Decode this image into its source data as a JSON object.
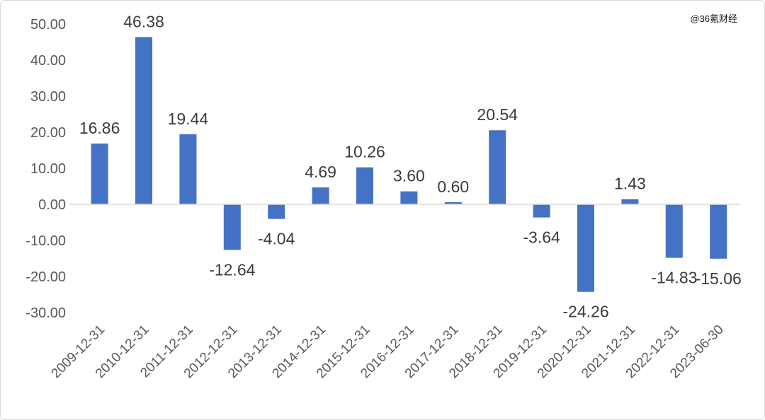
{
  "watermark": "@36氪财经",
  "chart_data": {
    "type": "bar",
    "categories": [
      "2009-12-31",
      "2010-12-31",
      "2011-12-31",
      "2012-12-31",
      "2013-12-31",
      "2014-12-31",
      "2015-12-31",
      "2016-12-31",
      "2017-12-31",
      "2018-12-31",
      "2019-12-31",
      "2020-12-31",
      "2021-12-31",
      "2022-12-31",
      "2023-06-30"
    ],
    "values": [
      16.86,
      46.38,
      19.44,
      -12.64,
      -4.04,
      4.69,
      10.26,
      3.6,
      0.6,
      20.54,
      -3.64,
      -24.26,
      1.43,
      -14.83,
      -15.06
    ],
    "data_labels": [
      "16.86",
      "46.38",
      "19.44",
      "-12.64",
      "-4.04",
      "4.69",
      "10.26",
      "3.60",
      "0.60",
      "20.54",
      "-3.64",
      "-24.26",
      "1.43",
      "-14.83",
      "-15.06"
    ],
    "yticks": [
      "50.00",
      "40.00",
      "30.00",
      "20.00",
      "10.00",
      "0.00",
      "-10.00",
      "-20.00",
      "-30.00"
    ],
    "ylim": [
      -30,
      50
    ],
    "bar_color": "#4472c4",
    "axis_color": "#d9d9d9",
    "grid": false,
    "legend": false
  }
}
